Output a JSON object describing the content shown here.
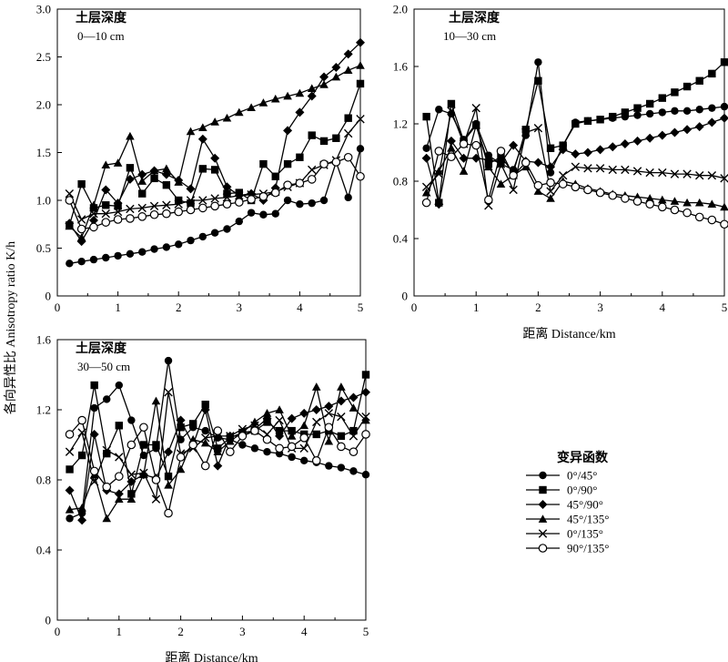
{
  "ylabel": "各向异性比 Anisotropy ratio K/h",
  "legend_title": "变异函数",
  "series_styles": [
    {
      "name": "0°/45°",
      "marker": "circle-filled"
    },
    {
      "name": "0°/90°",
      "marker": "square-filled"
    },
    {
      "name": "45°/90°",
      "marker": "diamond-filled"
    },
    {
      "name": "45°/135°",
      "marker": "triangle-filled"
    },
    {
      "name": "0°/135°",
      "marker": "x-cross"
    },
    {
      "name": "90°/135°",
      "marker": "circle-open"
    }
  ],
  "chart_data": [
    {
      "type": "line",
      "title": "土层深度",
      "subtitle": "0—10 cm",
      "xlabel": "",
      "ylabel": "",
      "xlim": [
        0,
        5
      ],
      "ylim": [
        0,
        3.0
      ],
      "xticks": [
        "0",
        "1",
        "2",
        "3",
        "4",
        "5"
      ],
      "yticks": [
        "0",
        "0.5",
        "1.0",
        "1.5",
        "2.0",
        "2.5",
        "3.0"
      ],
      "x": [
        0.2,
        0.4,
        0.6,
        0.8,
        1.0,
        1.2,
        1.4,
        1.6,
        1.8,
        2.0,
        2.2,
        2.4,
        2.6,
        2.8,
        3.0,
        3.2,
        3.4,
        3.6,
        3.8,
        4.0,
        4.2,
        4.4,
        4.6,
        4.8,
        5.0
      ],
      "series": [
        {
          "name": "0°/45°",
          "values": [
            0.34,
            0.36,
            0.38,
            0.4,
            0.42,
            0.44,
            0.46,
            0.49,
            0.51,
            0.54,
            0.58,
            0.62,
            0.66,
            0.7,
            0.78,
            0.87,
            0.85,
            0.86,
            1.0,
            0.96,
            0.97,
            1.0,
            1.4,
            1.03,
            1.54
          ]
        },
        {
          "name": "0°/90°",
          "values": [
            0.74,
            1.17,
            0.92,
            0.95,
            0.94,
            1.34,
            1.07,
            1.23,
            1.16,
            1.0,
            0.97,
            1.33,
            1.32,
            1.07,
            1.08,
            1.0,
            1.38,
            1.25,
            1.38,
            1.45,
            1.68,
            1.62,
            1.65,
            1.86,
            2.22
          ]
        },
        {
          "name": "45°/90°",
          "values": [
            0.76,
            0.57,
            0.79,
            1.11,
            0.97,
            1.22,
            1.27,
            1.31,
            1.27,
            1.21,
            1.12,
            1.64,
            1.44,
            1.14,
            1.05,
            1.07,
            1.0,
            1.13,
            1.73,
            1.92,
            2.09,
            2.29,
            2.39,
            2.53,
            2.65
          ]
        },
        {
          "name": "45°/135°",
          "values": [
            0.73,
            0.61,
            0.95,
            1.37,
            1.39,
            1.67,
            1.2,
            1.31,
            1.33,
            1.19,
            1.72,
            1.76,
            1.82,
            1.86,
            1.92,
            1.97,
            2.02,
            2.06,
            2.09,
            2.12,
            2.17,
            2.21,
            2.29,
            2.36,
            2.41
          ]
        },
        {
          "name": "0°/135°",
          "values": [
            1.07,
            0.8,
            0.86,
            0.86,
            0.88,
            0.91,
            0.92,
            0.94,
            0.95,
            0.96,
            1.0,
            1.0,
            1.02,
            1.03,
            1.05,
            1.06,
            1.07,
            1.09,
            1.14,
            1.18,
            1.32,
            1.37,
            1.42,
            1.7,
            1.85
          ]
        },
        {
          "name": "90°/135°",
          "values": [
            1.0,
            0.7,
            0.72,
            0.77,
            0.8,
            0.81,
            0.83,
            0.85,
            0.86,
            0.88,
            0.9,
            0.92,
            0.94,
            0.96,
            0.98,
            1.01,
            1.04,
            1.08,
            1.16,
            1.18,
            1.22,
            1.38,
            1.4,
            1.45,
            1.25
          ]
        }
      ]
    },
    {
      "type": "line",
      "title": "土层深度",
      "subtitle": "10—30 cm",
      "xlabel": "距离 Distance/km",
      "ylabel": "",
      "xlim": [
        0,
        5
      ],
      "ylim": [
        0,
        2.0
      ],
      "xticks": [
        "0",
        "1",
        "2",
        "3",
        "4",
        "5"
      ],
      "yticks": [
        "0",
        "0.4",
        "0.8",
        "1.2",
        "1.6",
        "2.0"
      ],
      "x": [
        0.2,
        0.4,
        0.6,
        0.8,
        1.0,
        1.2,
        1.4,
        1.6,
        1.8,
        2.0,
        2.2,
        2.4,
        2.6,
        2.8,
        3.0,
        3.2,
        3.4,
        3.6,
        3.8,
        4.0,
        4.2,
        4.4,
        4.6,
        4.8,
        5.0
      ],
      "series": [
        {
          "name": "0°/45°",
          "values": [
            1.03,
            1.3,
            1.27,
            1.09,
            1.2,
            0.98,
            0.92,
            0.88,
            1.12,
            1.63,
            0.86,
            1.05,
            1.21,
            1.22,
            1.23,
            1.24,
            1.25,
            1.26,
            1.27,
            1.28,
            1.29,
            1.29,
            1.3,
            1.31,
            1.32
          ]
        },
        {
          "name": "0°/90°",
          "values": [
            1.25,
            0.65,
            1.34,
            1.08,
            1.19,
            0.92,
            0.97,
            0.86,
            1.16,
            1.5,
            1.03,
            1.05,
            1.2,
            1.22,
            1.23,
            1.25,
            1.28,
            1.31,
            1.34,
            1.38,
            1.42,
            1.46,
            1.5,
            1.55,
            1.63
          ]
        },
        {
          "name": "45°/90°",
          "values": [
            0.96,
            0.64,
            1.08,
            0.96,
            0.96,
            0.95,
            0.93,
            1.05,
            0.94,
            0.93,
            0.9,
            1.02,
            0.99,
            1.0,
            1.02,
            1.04,
            1.06,
            1.08,
            1.1,
            1.12,
            1.14,
            1.16,
            1.18,
            1.21,
            1.24
          ]
        },
        {
          "name": "45°/135°",
          "values": [
            0.72,
            0.87,
            1.03,
            0.87,
            1.19,
            0.9,
            0.78,
            0.84,
            0.9,
            0.73,
            0.68,
            0.8,
            0.78,
            0.75,
            0.73,
            0.71,
            0.7,
            0.69,
            0.68,
            0.67,
            0.66,
            0.65,
            0.65,
            0.64,
            0.62
          ]
        },
        {
          "name": "0°/135°",
          "values": [
            0.76,
            0.85,
            1.29,
            1.06,
            1.31,
            0.63,
            0.92,
            0.74,
            1.14,
            1.17,
            0.73,
            0.84,
            0.9,
            0.89,
            0.89,
            0.88,
            0.88,
            0.87,
            0.86,
            0.86,
            0.85,
            0.85,
            0.84,
            0.84,
            0.82
          ]
        },
        {
          "name": "90°/135°",
          "values": [
            0.65,
            1.01,
            0.97,
            1.06,
            1.05,
            0.67,
            1.01,
            0.84,
            0.93,
            0.77,
            0.79,
            0.78,
            0.76,
            0.74,
            0.72,
            0.7,
            0.68,
            0.66,
            0.64,
            0.62,
            0.6,
            0.58,
            0.55,
            0.53,
            0.5
          ]
        }
      ]
    },
    {
      "type": "line",
      "title": "土层深度",
      "subtitle": "30—50 cm",
      "xlabel": "距离 Distance/km",
      "ylabel": "",
      "xlim": [
        0,
        5
      ],
      "ylim": [
        0,
        1.6
      ],
      "xticks": [
        "0",
        "1",
        "2",
        "3",
        "4",
        "5"
      ],
      "yticks": [
        "0",
        "0.4",
        "0.8",
        "1.2",
        "1.6"
      ],
      "x": [
        0.2,
        0.4,
        0.6,
        0.8,
        1.0,
        1.2,
        1.4,
        1.6,
        1.8,
        2.0,
        2.2,
        2.4,
        2.6,
        2.8,
        3.0,
        3.2,
        3.4,
        3.6,
        3.8,
        4.0,
        4.2,
        4.4,
        4.6,
        4.8,
        5.0
      ],
      "series": [
        {
          "name": "0°/45°",
          "values": [
            0.58,
            0.61,
            1.21,
            1.26,
            1.34,
            1.14,
            0.94,
            0.98,
            1.48,
            1.03,
            1.1,
            1.08,
            1.04,
            1.03,
            1.0,
            0.98,
            0.96,
            0.95,
            0.93,
            0.91,
            0.9,
            0.88,
            0.87,
            0.85,
            0.83
          ]
        },
        {
          "name": "0°/90°",
          "values": [
            0.86,
            0.94,
            1.34,
            0.95,
            1.11,
            0.72,
            1.0,
            1.0,
            0.82,
            1.1,
            1.12,
            1.23,
            0.98,
            1.04,
            1.07,
            1.08,
            1.13,
            1.08,
            1.08,
            1.06,
            1.06,
            1.08,
            1.05,
            1.08,
            1.4
          ]
        },
        {
          "name": "45°/90°",
          "values": [
            0.74,
            0.57,
            1.06,
            0.74,
            0.72,
            0.79,
            0.83,
            0.81,
            0.96,
            1.14,
            1.0,
            1.2,
            0.88,
            1.05,
            1.05,
            1.09,
            1.15,
            1.05,
            1.15,
            1.18,
            1.2,
            1.22,
            1.25,
            1.27,
            1.3
          ]
        },
        {
          "name": "45°/135°",
          "values": [
            0.63,
            0.64,
            0.83,
            0.58,
            0.69,
            0.69,
            0.83,
            1.25,
            0.77,
            0.86,
            1.03,
            1.01,
            0.96,
            1.02,
            1.07,
            1.13,
            1.18,
            1.2,
            1.05,
            1.11,
            1.33,
            1.02,
            1.33,
            1.21,
            1.14
          ]
        },
        {
          "name": "0°/135°",
          "values": [
            0.96,
            1.07,
            0.79,
            0.97,
            0.93,
            0.83,
            0.84,
            0.69,
            1.3,
            0.95,
            0.98,
            1.04,
            1.05,
            1.05,
            1.09,
            1.11,
            1.06,
            1.14,
            0.98,
            0.98,
            1.13,
            1.18,
            1.16,
            1.05,
            1.16
          ]
        },
        {
          "name": "90°/135°",
          "values": [
            1.06,
            1.14,
            0.85,
            0.76,
            0.82,
            1.0,
            1.1,
            0.8,
            0.61,
            0.93,
            1.0,
            0.88,
            1.08,
            0.96,
            1.05,
            1.08,
            1.03,
            0.98,
            0.99,
            1.04,
            0.91,
            1.1,
            0.99,
            0.96,
            1.06
          ]
        }
      ]
    }
  ]
}
